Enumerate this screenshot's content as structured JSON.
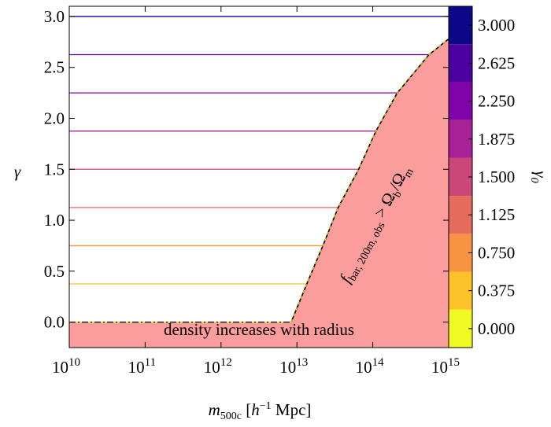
{
  "chart_data": {
    "type": "line",
    "xlabel": {
      "base": "m",
      "sub": "500c",
      "unit_open": " [",
      "unit_h": "h",
      "unit_sup": "−1",
      "unit_rest": " Mpc]"
    },
    "ylabel": "γ",
    "colorbar": {
      "label": "γ",
      "label_sub": "0",
      "ylim": [
        -0.1875,
        3.1875
      ],
      "bins": [
        -0.1875,
        0.1875,
        0.5625,
        0.9375,
        1.3125,
        1.6875,
        2.0625,
        2.4375,
        2.8125,
        3.1875
      ],
      "colors": [
        "#f0f921",
        "#fdc328",
        "#f89441",
        "#e56b5d",
        "#cb4778",
        "#a82296",
        "#7e03a8",
        "#4c02a1",
        "#0d0887"
      ],
      "ticks": [
        {
          "value": 0,
          "label": "0.000"
        },
        {
          "value": 0.375,
          "label": "0.375"
        },
        {
          "value": 0.75,
          "label": "0.750"
        },
        {
          "value": 1.125,
          "label": "1.125"
        },
        {
          "value": 1.5,
          "label": "1.500"
        },
        {
          "value": 1.875,
          "label": "1.875"
        },
        {
          "value": 2.25,
          "label": "2.250"
        },
        {
          "value": 2.625,
          "label": "2.625"
        },
        {
          "value": 3,
          "label": "3.000"
        }
      ]
    },
    "xscale": "log",
    "xlim": [
      10000000000.0,
      1000000000000000.0
    ],
    "ylim": [
      -0.25,
      3.1
    ],
    "xticks": [
      {
        "value": 10000000000.0,
        "label": "10",
        "exp": "10"
      },
      {
        "value": 100000000000.0,
        "label": "10",
        "exp": "11"
      },
      {
        "value": 1000000000000.0,
        "label": "10",
        "exp": "12"
      },
      {
        "value": 10000000000000.0,
        "label": "10",
        "exp": "13"
      },
      {
        "value": 100000000000000.0,
        "label": "10",
        "exp": "14"
      },
      {
        "value": 1000000000000000.0,
        "label": "10",
        "exp": "15"
      }
    ],
    "yticks": [
      {
        "value": 0,
        "label": "0.0"
      },
      {
        "value": 0.5,
        "label": "0.5"
      },
      {
        "value": 1,
        "label": "1.0"
      },
      {
        "value": 1.5,
        "label": "1.5"
      },
      {
        "value": 2,
        "label": "2.0"
      },
      {
        "value": 2.5,
        "label": "2.5"
      },
      {
        "value": 3,
        "label": "3.0"
      }
    ],
    "region_color": "#fb9d9d",
    "series": [
      {
        "color": "#f0f921",
        "x": [
          10000000000.0,
          8400000000000.0
        ],
        "values": [
          0,
          0
        ]
      },
      {
        "color": "#fdc328",
        "x": [
          10000000000.0,
          13500000000000.0
        ],
        "values": [
          0.375,
          0.375
        ]
      },
      {
        "color": "#f89441",
        "x": [
          10000000000.0,
          22000000000000.0
        ],
        "values": [
          0.75,
          0.75
        ]
      },
      {
        "color": "#e56b5d",
        "x": [
          10000000000.0,
          35000000000000.0
        ],
        "values": [
          1.125,
          1.125
        ]
      },
      {
        "color": "#cb4778",
        "x": [
          10000000000.0,
          65000000000000.0
        ],
        "values": [
          1.5,
          1.5
        ]
      },
      {
        "color": "#a82296",
        "x": [
          10000000000.0,
          110000000000000.0
        ],
        "values": [
          1.875,
          1.875
        ]
      },
      {
        "color": "#7e03a8",
        "x": [
          10000000000.0,
          210000000000000.0
        ],
        "values": [
          2.25,
          2.25
        ]
      },
      {
        "color": "#4c02a1",
        "x": [
          10000000000.0,
          550000000000000.0
        ],
        "values": [
          2.625,
          2.625
        ]
      },
      {
        "color": "#0d0887",
        "x": [
          10000000000.0,
          1000000000000000.0
        ],
        "values": [
          3,
          3
        ]
      }
    ],
    "boundary": {
      "x": [
        10000000000.0,
        8400000000000.0,
        13500000000000.0,
        22000000000000.0,
        35000000000000.0,
        65000000000000.0,
        110000000000000.0,
        210000000000000.0,
        550000000000000.0,
        1000000000000000.0
      ],
      "values": [
        0,
        0,
        0.375,
        0.75,
        1.125,
        1.5,
        1.875,
        2.25,
        2.625,
        2.78
      ]
    },
    "annotations": {
      "bottom": "density increases with radius",
      "slope": {
        "f": "f",
        "f_sub": "bar, 200m, obs",
        "gt": " > Ω",
        "b_sub": "b",
        "slash": "/Ω",
        "m_sub": "m"
      }
    }
  }
}
